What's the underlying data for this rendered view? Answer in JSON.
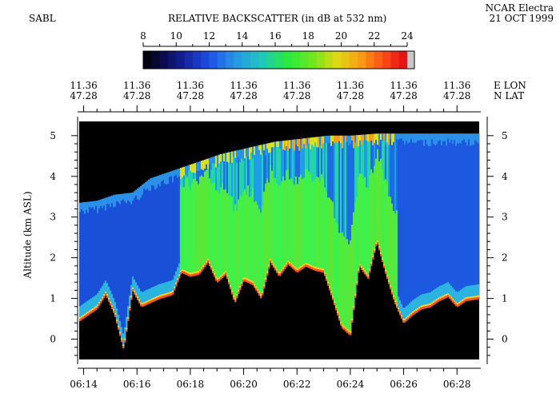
{
  "header": {
    "instrument": "SABL",
    "title": "RELATIVE BACKSCATTER (in dB at 532 nm)",
    "platform": "NCAR Electra",
    "date": "21 OCT 1999"
  },
  "colorbar": {
    "ticks": [
      8,
      10,
      12,
      14,
      16,
      18,
      20,
      22,
      24
    ],
    "range": [
      8,
      24
    ]
  },
  "top_axis": {
    "lon_tag": "E LON",
    "lat_tag": "N LAT",
    "lon_labels": [
      "11.36",
      "11.36",
      "11.36",
      "11.36",
      "11.36",
      "11.36",
      "11.36",
      "11.36"
    ],
    "lat_labels": [
      "47.28",
      "47.28",
      "47.28",
      "47.28",
      "47.28",
      "47.28",
      "47.28",
      "47.28"
    ]
  },
  "chart_data": {
    "type": "heatmap",
    "title": "RELATIVE BACKSCATTER (in dB at 532 nm)",
    "xlabel": "",
    "ylabel": "Altitude (km ASL)",
    "x_ticks": [
      "06:14",
      "06:16",
      "06:18",
      "06:20",
      "06:22",
      "06:24",
      "06:26",
      "06:28"
    ],
    "y_ticks": [
      "0",
      "1",
      "2",
      "3",
      "4",
      "5"
    ],
    "xlim": [
      "06:13:50",
      "06:28:50"
    ],
    "ylim": [
      -0.5,
      5.35
    ],
    "colorscale_range_db": [
      8,
      24
    ],
    "surface_top_km": [
      [
        "06:13:50",
        0.45
      ],
      [
        "06:14:30",
        0.75
      ],
      [
        "06:14:50",
        1.1
      ],
      [
        "06:15:10",
        0.6
      ],
      [
        "06:15:30",
        -0.25
      ],
      [
        "06:15:50",
        1.2
      ],
      [
        "06:16:10",
        0.8
      ],
      [
        "06:16:30",
        0.9
      ],
      [
        "06:16:50",
        1.0
      ],
      [
        "06:17:20",
        1.1
      ],
      [
        "06:17:40",
        1.65
      ],
      [
        "06:18:00",
        1.55
      ],
      [
        "06:18:20",
        1.6
      ],
      [
        "06:18:40",
        1.9
      ],
      [
        "06:19:00",
        1.4
      ],
      [
        "06:19:20",
        1.6
      ],
      [
        "06:19:40",
        0.9
      ],
      [
        "06:20:00",
        1.45
      ],
      [
        "06:20:20",
        1.35
      ],
      [
        "06:20:40",
        1.0
      ],
      [
        "06:21:00",
        1.9
      ],
      [
        "06:21:20",
        1.55
      ],
      [
        "06:21:40",
        1.85
      ],
      [
        "06:22:00",
        1.65
      ],
      [
        "06:22:20",
        1.8
      ],
      [
        "06:22:40",
        1.7
      ],
      [
        "06:23:00",
        1.65
      ],
      [
        "06:23:20",
        1.0
      ],
      [
        "06:23:40",
        0.3
      ],
      [
        "06:24:00",
        0.1
      ],
      [
        "06:24:20",
        1.8
      ],
      [
        "06:24:40",
        1.5
      ],
      [
        "06:25:00",
        2.4
      ],
      [
        "06:25:20",
        1.6
      ],
      [
        "06:25:40",
        0.9
      ],
      [
        "06:26:00",
        0.4
      ],
      [
        "06:26:20",
        0.6
      ],
      [
        "06:26:40",
        0.75
      ],
      [
        "06:27:00",
        0.8
      ],
      [
        "06:27:20",
        0.95
      ],
      [
        "06:27:40",
        1.05
      ],
      [
        "06:28:00",
        0.8
      ],
      [
        "06:28:20",
        0.95
      ],
      [
        "06:28:50",
        1.0
      ]
    ],
    "signal_top_km": [
      [
        "06:13:50",
        3.35
      ],
      [
        "06:14:30",
        3.4
      ],
      [
        "06:15:10",
        3.55
      ],
      [
        "06:15:50",
        3.6
      ],
      [
        "06:16:30",
        3.95
      ],
      [
        "06:17:10",
        4.1
      ],
      [
        "06:17:50",
        4.25
      ],
      [
        "06:18:30",
        4.4
      ],
      [
        "06:19:10",
        4.55
      ],
      [
        "06:19:50",
        4.65
      ],
      [
        "06:20:30",
        4.75
      ],
      [
        "06:21:10",
        4.85
      ],
      [
        "06:21:50",
        4.9
      ],
      [
        "06:22:30",
        4.95
      ],
      [
        "06:23:10",
        5.0
      ],
      [
        "06:24:00",
        5.0
      ],
      [
        "06:25:00",
        5.05
      ],
      [
        "06:26:00",
        5.05
      ],
      [
        "06:27:00",
        5.05
      ],
      [
        "06:28:50",
        5.05
      ]
    ]
  }
}
